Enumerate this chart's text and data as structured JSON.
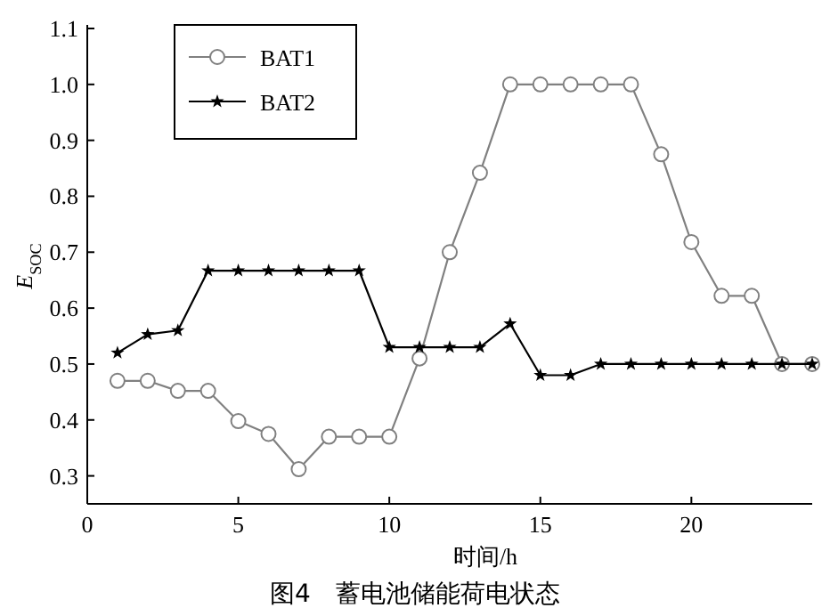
{
  "chart_data": {
    "type": "line",
    "title": "图4　蓄电池储能荷电状态",
    "xlabel": "时间/h",
    "ylabel": "E$_{SOC}$",
    "x": [
      1,
      2,
      3,
      4,
      5,
      6,
      7,
      8,
      9,
      10,
      11,
      12,
      13,
      14,
      15,
      16,
      17,
      18,
      19,
      20,
      21,
      22,
      23,
      24
    ],
    "series": [
      {
        "name": "BAT1",
        "color": "#808080",
        "marker": "circle",
        "values": [
          0.47,
          0.47,
          0.452,
          0.452,
          0.398,
          0.375,
          0.312,
          0.37,
          0.37,
          0.37,
          0.51,
          0.7,
          0.842,
          1,
          1,
          1,
          1,
          1,
          0.875,
          0.718,
          0.622,
          0.622,
          0.5,
          0.5
        ]
      },
      {
        "name": "BAT2",
        "color": "#000000",
        "marker": "star",
        "values": [
          0.52,
          0.553,
          0.56,
          0.667,
          0.667,
          0.667,
          0.667,
          0.667,
          0.667,
          0.53,
          0.53,
          0.53,
          0.53,
          0.572,
          0.48,
          0.48,
          0.5,
          0.5,
          0.5,
          0.5,
          0.5,
          0.5,
          0.5,
          0.5
        ]
      }
    ],
    "xlim": [
      0,
      24
    ],
    "xticks": [
      0,
      5,
      10,
      15,
      20
    ],
    "ylim": [
      0.25,
      1.1
    ],
    "yticks": [
      0.3,
      0.4,
      0.5,
      0.6,
      0.7,
      0.8,
      0.9,
      {
        "value": 1,
        "label": "1.0"
      },
      1.1
    ],
    "grid": false,
    "legend": "top left",
    "line_style": "solid"
  }
}
